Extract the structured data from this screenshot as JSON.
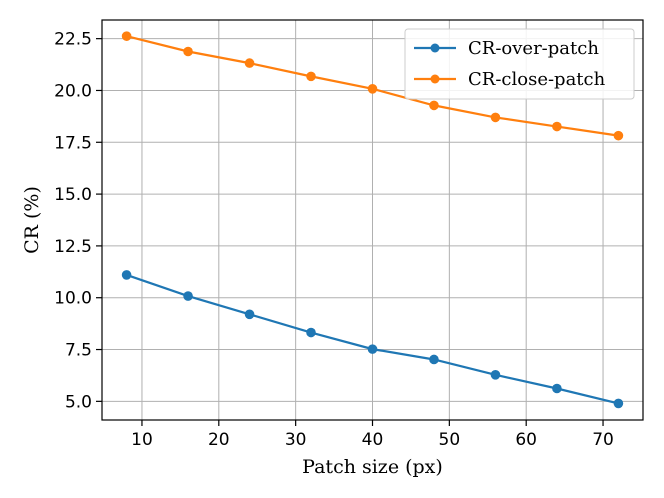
{
  "chart_data": {
    "type": "line",
    "title": "",
    "xlabel": "Patch size (px)",
    "ylabel": "CR (%)",
    "xlim": [
      4.8,
      75.2
    ],
    "ylim": [
      4.1,
      23.4
    ],
    "xticks": [
      10,
      20,
      30,
      40,
      50,
      60,
      70
    ],
    "yticks": [
      5.0,
      7.5,
      10.0,
      12.5,
      15.0,
      17.5,
      20.0,
      22.5
    ],
    "xtick_labels": [
      "10",
      "20",
      "30",
      "40",
      "50",
      "60",
      "70"
    ],
    "ytick_labels": [
      "5.0",
      "7.5",
      "10.0",
      "12.5",
      "15.0",
      "17.5",
      "20.0",
      "22.5"
    ],
    "grid": true,
    "legend_position": "top-right",
    "x": [
      8,
      16,
      24,
      32,
      40,
      48,
      56,
      64,
      72
    ],
    "series": [
      {
        "name": "CR-over-patch",
        "color": "#1f77b4",
        "values": [
          11.1,
          10.08,
          9.2,
          8.32,
          7.52,
          7.02,
          6.28,
          5.62,
          4.9
        ]
      },
      {
        "name": "CR-close-patch",
        "color": "#ff7f0e",
        "values": [
          22.62,
          21.88,
          21.32,
          20.68,
          20.08,
          19.28,
          18.7,
          18.26,
          17.82
        ]
      }
    ]
  }
}
